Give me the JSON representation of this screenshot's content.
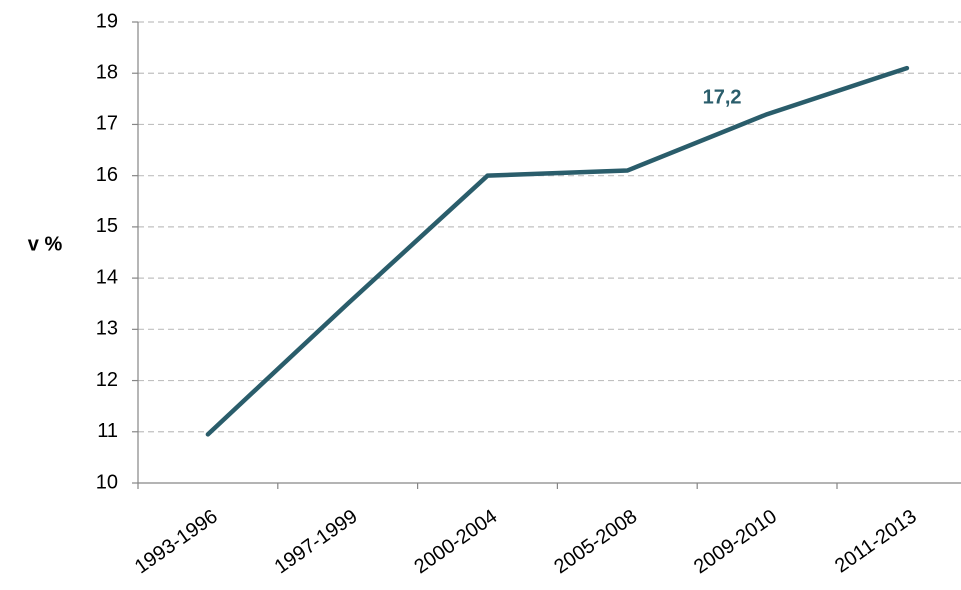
{
  "chart_data": {
    "type": "line",
    "y_label": "v %",
    "categories": [
      "1993-1996",
      "1997-1999",
      "2000-2004",
      "2005-2008",
      "2009-2010",
      "2011-2013"
    ],
    "series": [
      {
        "name": null,
        "color": "#2a5d6b",
        "values": [
          10.95,
          13.5,
          16.0,
          16.1,
          17.2,
          18.1
        ],
        "value_labels": [
          null,
          null,
          null,
          null,
          "17,2",
          null
        ]
      }
    ],
    "ylim": [
      10,
      19
    ],
    "yticks": [
      10,
      11,
      12,
      13,
      14,
      15,
      16,
      17,
      18,
      19
    ],
    "grid": true
  }
}
